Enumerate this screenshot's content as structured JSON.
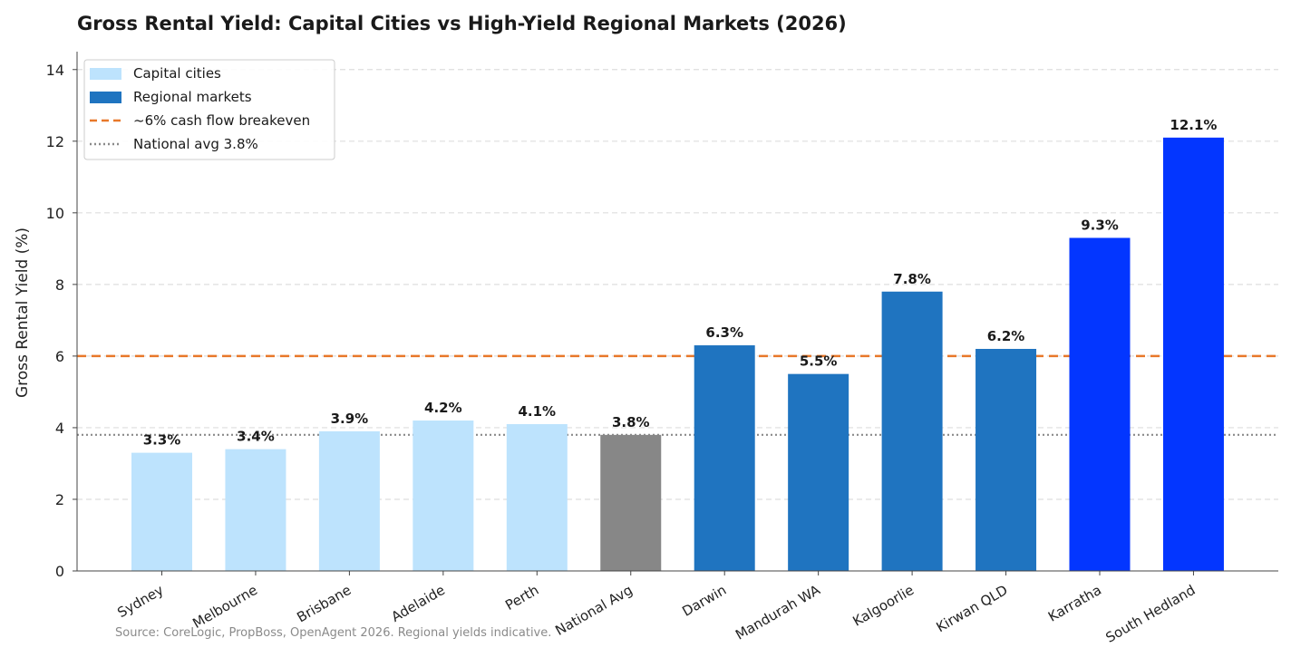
{
  "chart_data": {
    "type": "bar",
    "title": "Gross Rental Yield: Capital Cities vs High-Yield Regional Markets (2026)",
    "xlabel": "",
    "ylabel": "Gross Rental Yield (%)",
    "ylim": [
      0,
      14.5
    ],
    "yticks": [
      0,
      2,
      4,
      6,
      8,
      10,
      12,
      14
    ],
    "grid": "horizontal dashed",
    "legend_position": "top-left",
    "categories": [
      "Sydney",
      "Melbourne",
      "Brisbane",
      "Adelaide",
      "Perth",
      "National Avg",
      "Darwin",
      "Mandurah WA",
      "Kalgoorlie",
      "Kirwan QLD",
      "Karratha",
      "South Hedland"
    ],
    "values": [
      3.3,
      3.4,
      3.9,
      4.2,
      4.1,
      3.8,
      6.3,
      5.5,
      7.8,
      6.2,
      9.3,
      12.1
    ],
    "data_labels": [
      "3.3%",
      "3.4%",
      "3.9%",
      "4.2%",
      "4.1%",
      "3.8%",
      "6.3%",
      "5.5%",
      "7.8%",
      "6.2%",
      "9.3%",
      "12.1%"
    ],
    "bar_colors": [
      "#bde3fd",
      "#bde3fd",
      "#bde3fd",
      "#bde3fd",
      "#bde3fd",
      "#878787",
      "#1f74c0",
      "#1f74c0",
      "#1f74c0",
      "#1f74c0",
      "#0336ff",
      "#0336ff"
    ],
    "reference_lines": [
      {
        "label": "~6% cash flow breakeven",
        "value": 6,
        "color": "#e8782a",
        "style": "dashed"
      },
      {
        "label": "National avg 3.8%",
        "value": 3.8,
        "color": "#8a8a8a",
        "style": "dotted"
      }
    ],
    "legend": [
      {
        "label": "Capital cities",
        "kind": "patch",
        "color": "#bde3fd"
      },
      {
        "label": "Regional markets",
        "kind": "patch",
        "color": "#1f74c0"
      },
      {
        "label": "~6% cash flow breakeven",
        "kind": "dashed-line",
        "color": "#e8782a"
      },
      {
        "label": "National avg 3.8%",
        "kind": "dotted-line",
        "color": "#8a8a8a"
      }
    ],
    "source_note": "Source: CoreLogic, PropBoss, OpenAgent 2026. Regional yields indicative."
  }
}
